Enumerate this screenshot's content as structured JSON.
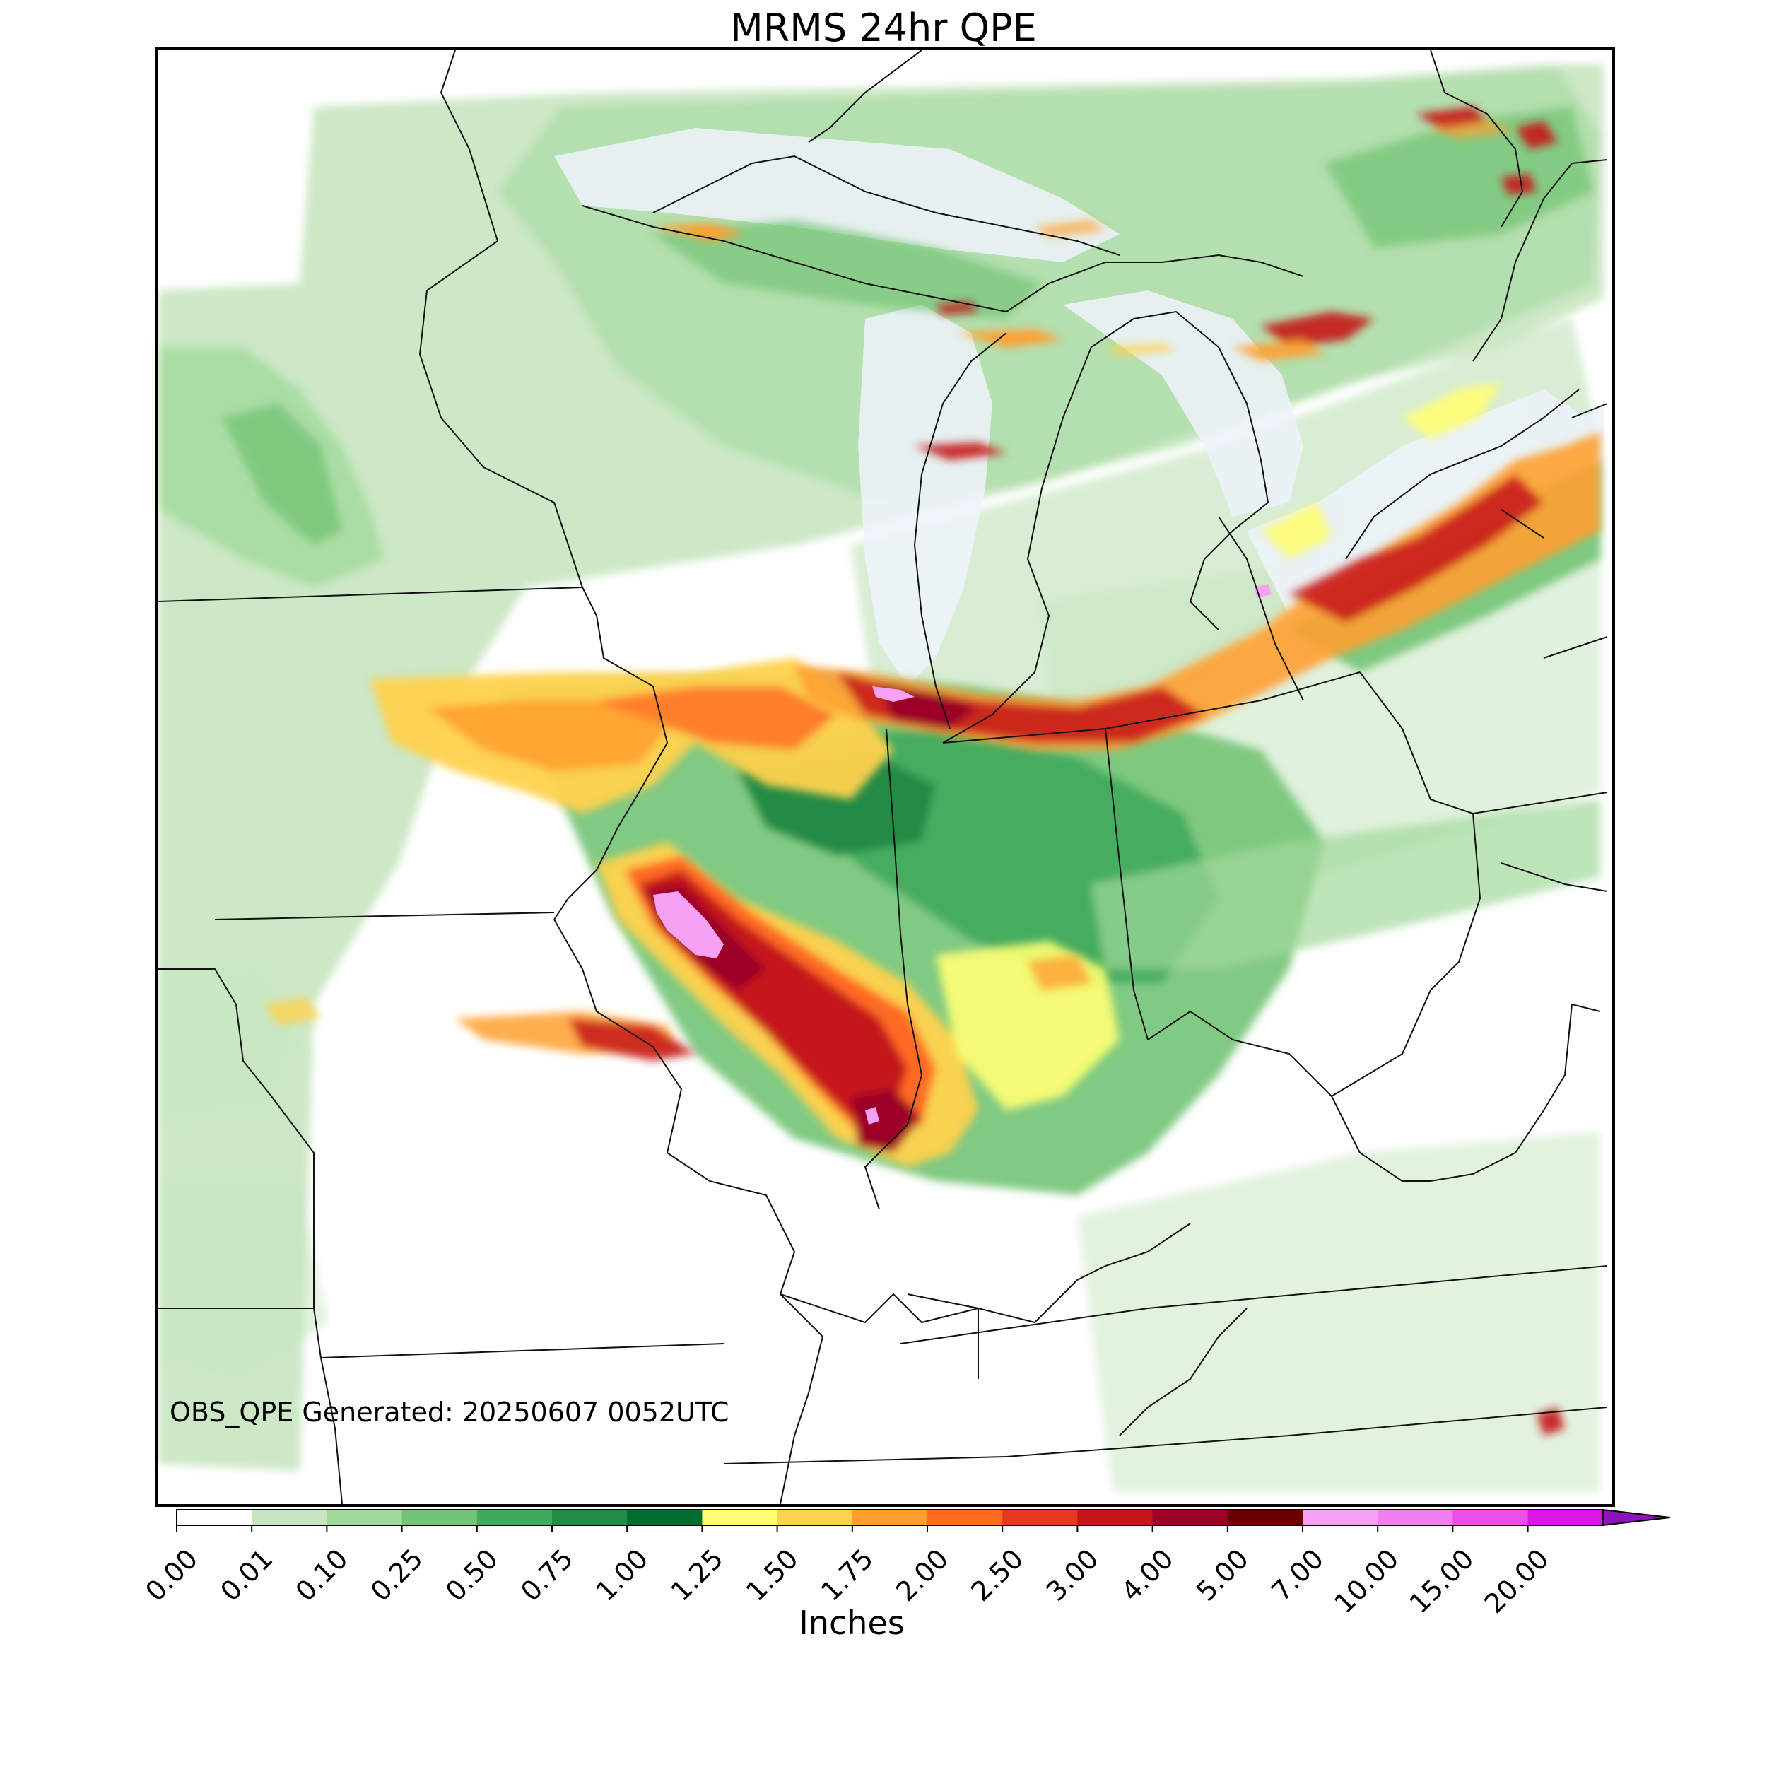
{
  "title": "MRMS 24hr QPE",
  "generated_label": "OBS_QPE Generated: 20250607 0052UTC",
  "colorbar": {
    "unit_label": "Inches",
    "levels": [
      "0.00",
      "0.01",
      "0.10",
      "0.25",
      "0.50",
      "0.75",
      "1.00",
      "1.25",
      "1.50",
      "1.75",
      "2.00",
      "2.50",
      "3.00",
      "4.00",
      "5.00",
      "7.00",
      "10.00",
      "15.00",
      "20.00"
    ],
    "colors": [
      "#ffffff",
      "#c7e6c0",
      "#a1d99b",
      "#74c476",
      "#41ab5d",
      "#238b45",
      "#006d2c",
      "#ffff73",
      "#ffd24d",
      "#ffa030",
      "#ff6a22",
      "#e53a20",
      "#c5141a",
      "#9c0026",
      "#6b0000",
      "#f7a1f4",
      "#f27ff0",
      "#ec4ee8",
      "#d916e5",
      "#8f12c0"
    ],
    "extend": "max"
  }
}
